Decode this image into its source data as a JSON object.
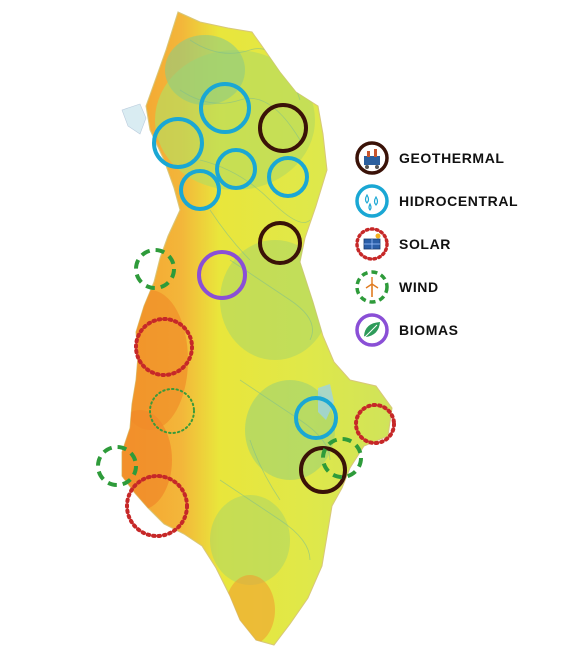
{
  "legend": [
    {
      "key": "geothermal",
      "label": "GEOTHERMAL",
      "color": "#3a1208",
      "style": "solid",
      "icon": "geothermal-plant-icon"
    },
    {
      "key": "hydro",
      "label": "HIDROCENTRAL",
      "color": "#1aa7d4",
      "style": "solid",
      "icon": "water-drops-icon"
    },
    {
      "key": "solar",
      "label": "SOLAR",
      "color": "#c62828",
      "style": "dotted",
      "icon": "solar-panel-icon"
    },
    {
      "key": "wind",
      "label": "WIND",
      "color": "#2e9b3a",
      "style": "dashed",
      "icon": "wind-turbine-icon"
    },
    {
      "key": "biomass",
      "label": "BIOMAS",
      "color": "#8a4fd6",
      "style": "solid",
      "icon": "leaf-icon"
    }
  ],
  "colors": {
    "terrain_low": "#f29a2e",
    "terrain_mid": "#e9e83a",
    "terrain_high": "#9fd27a",
    "water": "#8ccfe0"
  }
}
